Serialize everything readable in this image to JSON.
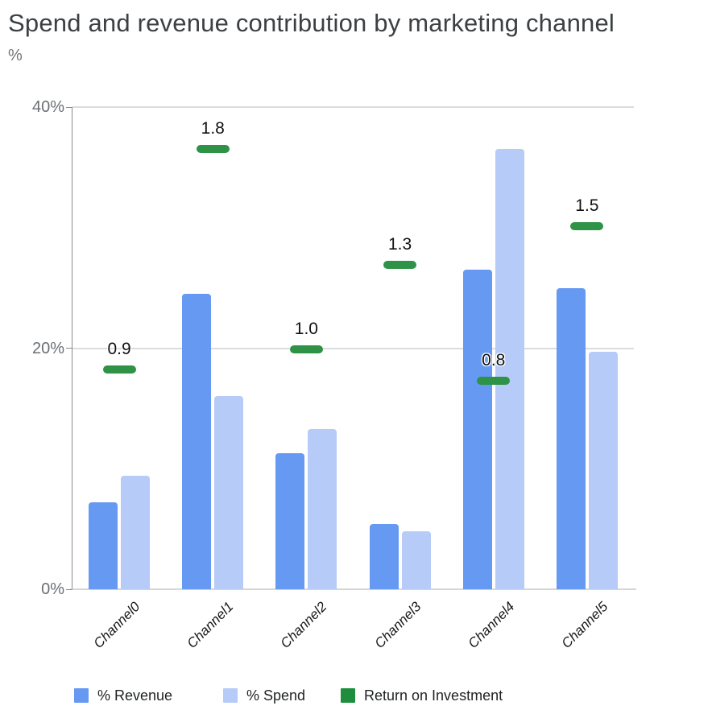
{
  "title": "Spend and revenue contribution by marketing channel",
  "subtitle": "%",
  "colors": {
    "revenue": "#6699F2",
    "spend": "#B6CBF7",
    "roi_marker": "#2E9247",
    "roi_legend": "#1E8E3E",
    "grid": "#DADCE0",
    "baseline": "#D6D6D6",
    "axis": "#85898D",
    "tick_text": "#6B6F74",
    "title_text": "#3C4043",
    "annotation_text": "#111111"
  },
  "chart_data": {
    "type": "bar",
    "title": "Spend and revenue contribution by marketing channel",
    "xlabel": "",
    "ylabel": "%",
    "categories": [
      "Channel0",
      "Channel1",
      "Channel2",
      "Channel3",
      "Channel4",
      "Channel5"
    ],
    "series": [
      {
        "name": "% Revenue",
        "type": "bar",
        "values": [
          7.2,
          24.5,
          11.3,
          5.4,
          26.5,
          25.0
        ]
      },
      {
        "name": "% Spend",
        "type": "bar",
        "values": [
          9.4,
          16.0,
          13.3,
          4.8,
          36.5,
          19.7
        ]
      },
      {
        "name": "Return on Investment",
        "type": "marker",
        "values": [
          0.9,
          1.8,
          1.0,
          1.3,
          0.8,
          1.5
        ],
        "marker_axis_pct": [
          18.2,
          36.5,
          19.9,
          26.9,
          17.3,
          30.1
        ]
      }
    ],
    "ylim": [
      0,
      40
    ],
    "yticks": [
      {
        "label": "0%",
        "value": 0
      },
      {
        "label": "20%",
        "value": 20
      },
      {
        "label": "40%",
        "value": 40
      }
    ],
    "grid": true,
    "legend_position": "bottom"
  }
}
